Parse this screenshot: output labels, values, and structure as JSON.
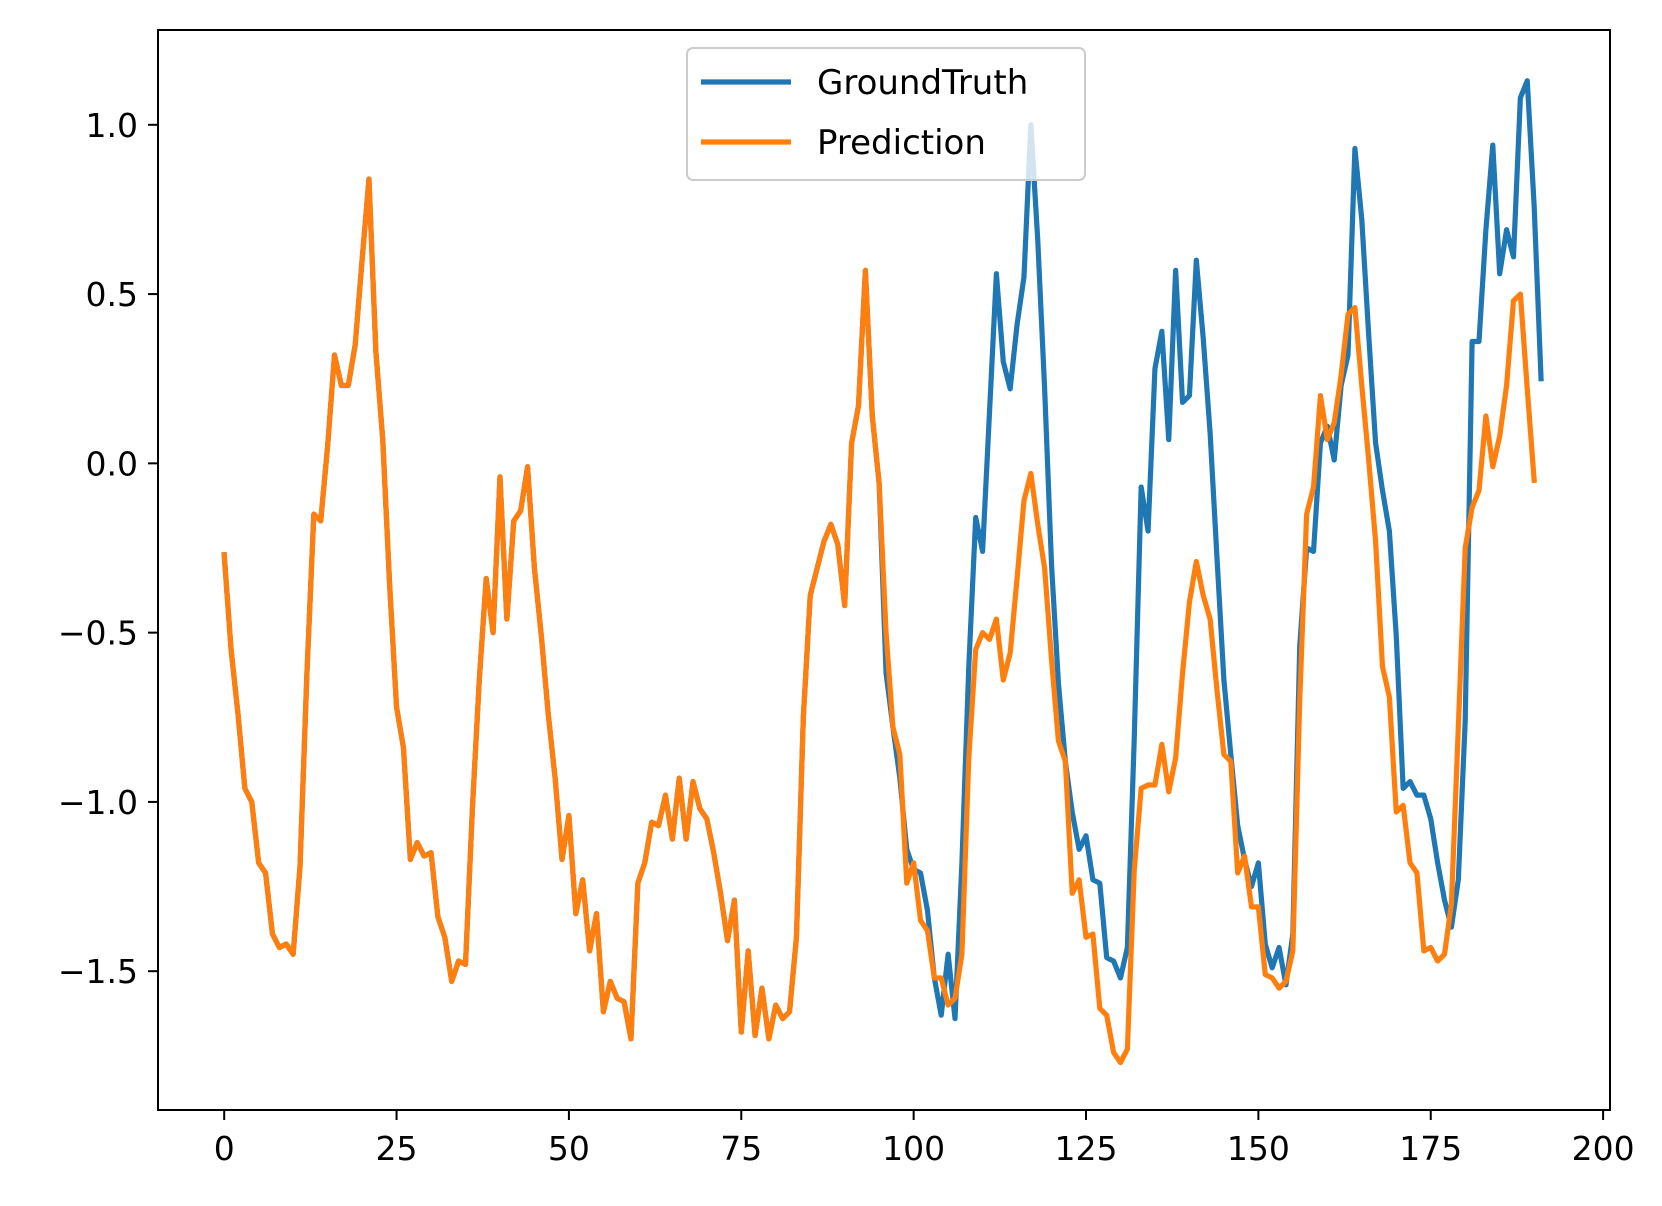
{
  "chart_data": {
    "type": "line",
    "title": "",
    "xlabel": "",
    "ylabel": "",
    "xlim": [
      -9.6,
      201
    ],
    "ylim": [
      -1.91,
      1.28
    ],
    "x_ticks": [
      0,
      25,
      50,
      75,
      100,
      125,
      150,
      175,
      200
    ],
    "y_ticks": [
      -1.5,
      -1.0,
      -0.5,
      0.0,
      0.5,
      1.0
    ],
    "x_tick_labels": [
      "0",
      "25",
      "50",
      "75",
      "100",
      "125",
      "150",
      "175",
      "200"
    ],
    "y_tick_labels": [
      "−1.5",
      "−1.0",
      "−0.5",
      "0.0",
      "0.5",
      "1.0"
    ],
    "grid": false,
    "legend": {
      "placement": "upper center"
    },
    "series": [
      {
        "name": "GroundTruth",
        "color": "#1f77b4",
        "values": [
          -0.27,
          -0.55,
          -0.74,
          -0.96,
          -1.0,
          -1.18,
          -1.21,
          -1.39,
          -1.43,
          -1.42,
          -1.45,
          -1.19,
          -0.62,
          -0.15,
          -0.17,
          0.05,
          0.32,
          0.23,
          0.23,
          0.35,
          0.6,
          0.84,
          0.33,
          0.07,
          -0.36,
          -0.72,
          -0.84,
          -1.17,
          -1.12,
          -1.16,
          -1.15,
          -1.34,
          -1.4,
          -1.53,
          -1.47,
          -1.48,
          -1.02,
          -0.64,
          -0.34,
          -0.5,
          -0.04,
          -0.46,
          -0.17,
          -0.14,
          -0.01,
          -0.31,
          -0.51,
          -0.74,
          -0.93,
          -1.17,
          -1.04,
          -1.33,
          -1.23,
          -1.44,
          -1.33,
          -1.62,
          -1.53,
          -1.58,
          -1.59,
          -1.7,
          -1.24,
          -1.18,
          -1.06,
          -1.07,
          -0.98,
          -1.11,
          -0.93,
          -1.11,
          -0.94,
          -1.02,
          -1.05,
          -1.15,
          -1.27,
          -1.41,
          -1.29,
          -1.68,
          -1.44,
          -1.69,
          -1.55,
          -1.7,
          -1.6,
          -1.64,
          -1.62,
          -1.4,
          -0.75,
          -0.39,
          -0.31,
          -0.23,
          -0.18,
          -0.24,
          -0.42,
          0.06,
          0.17,
          0.57,
          0.14,
          -0.06,
          -0.62,
          -0.78,
          -0.93,
          -1.14,
          -1.2,
          -1.21,
          -1.32,
          -1.52,
          -1.63,
          -1.45,
          -1.64,
          -1.18,
          -0.6,
          -0.16,
          -0.26,
          0.15,
          0.56,
          0.3,
          0.22,
          0.41,
          0.55,
          1.0,
          0.66,
          0.22,
          -0.3,
          -0.65,
          -0.88,
          -1.03,
          -1.14,
          -1.1,
          -1.23,
          -1.24,
          -1.46,
          -1.47,
          -1.52,
          -1.43,
          -0.81,
          -0.07,
          -0.2,
          0.28,
          0.39,
          0.07,
          0.57,
          0.18,
          0.2,
          0.6,
          0.37,
          0.09,
          -0.28,
          -0.64,
          -0.86,
          -1.07,
          -1.17,
          -1.25,
          -1.18,
          -1.42,
          -1.49,
          -1.43,
          -1.54,
          -1.39,
          -0.54,
          -0.25,
          -0.26,
          0.06,
          0.11,
          0.01,
          0.23,
          0.32,
          0.93,
          0.72,
          0.38,
          0.06,
          -0.08,
          -0.2,
          -0.51,
          -0.96,
          -0.94,
          -0.98,
          -0.98,
          -1.05,
          -1.18,
          -1.29,
          -1.37,
          -1.23,
          -0.76,
          0.36,
          0.36,
          0.69,
          0.94,
          0.56,
          0.69,
          0.61,
          1.08,
          1.13,
          0.76,
          0.25
        ]
      },
      {
        "name": "Prediction",
        "color": "#ff7f0e",
        "values": [
          -0.27,
          -0.55,
          -0.74,
          -0.96,
          -1.0,
          -1.18,
          -1.21,
          -1.39,
          -1.43,
          -1.42,
          -1.45,
          -1.19,
          -0.62,
          -0.15,
          -0.17,
          0.05,
          0.32,
          0.23,
          0.23,
          0.35,
          0.6,
          0.84,
          0.33,
          0.07,
          -0.36,
          -0.72,
          -0.84,
          -1.17,
          -1.12,
          -1.16,
          -1.15,
          -1.34,
          -1.4,
          -1.53,
          -1.47,
          -1.48,
          -1.02,
          -0.64,
          -0.34,
          -0.5,
          -0.04,
          -0.46,
          -0.17,
          -0.14,
          -0.01,
          -0.31,
          -0.51,
          -0.74,
          -0.93,
          -1.17,
          -1.04,
          -1.33,
          -1.23,
          -1.44,
          -1.33,
          -1.62,
          -1.53,
          -1.58,
          -1.59,
          -1.7,
          -1.24,
          -1.18,
          -1.06,
          -1.07,
          -0.98,
          -1.11,
          -0.93,
          -1.11,
          -0.94,
          -1.02,
          -1.05,
          -1.15,
          -1.27,
          -1.41,
          -1.29,
          -1.68,
          -1.44,
          -1.69,
          -1.55,
          -1.7,
          -1.6,
          -1.64,
          -1.62,
          -1.4,
          -0.75,
          -0.39,
          -0.31,
          -0.23,
          -0.18,
          -0.24,
          -0.42,
          0.06,
          0.17,
          0.57,
          0.14,
          -0.06,
          -0.5,
          -0.78,
          -0.86,
          -1.24,
          -1.18,
          -1.35,
          -1.38,
          -1.52,
          -1.52,
          -1.6,
          -1.58,
          -1.45,
          -0.87,
          -0.55,
          -0.5,
          -0.52,
          -0.46,
          -0.64,
          -0.56,
          -0.34,
          -0.11,
          -0.03,
          -0.18,
          -0.31,
          -0.58,
          -0.82,
          -0.88,
          -1.27,
          -1.23,
          -1.4,
          -1.39,
          -1.61,
          -1.63,
          -1.74,
          -1.77,
          -1.73,
          -1.2,
          -0.96,
          -0.95,
          -0.95,
          -0.83,
          -0.97,
          -0.87,
          -0.62,
          -0.41,
          -0.29,
          -0.39,
          -0.46,
          -0.67,
          -0.86,
          -0.88,
          -1.21,
          -1.16,
          -1.31,
          -1.31,
          -1.51,
          -1.52,
          -1.55,
          -1.53,
          -1.44,
          -0.7,
          -0.15,
          -0.07,
          0.2,
          0.07,
          0.12,
          0.26,
          0.44,
          0.46,
          0.23,
          0.01,
          -0.23,
          -0.6,
          -0.69,
          -1.03,
          -1.01,
          -1.18,
          -1.21,
          -1.44,
          -1.43,
          -1.47,
          -1.45,
          -1.3,
          -0.78,
          -0.25,
          -0.13,
          -0.08,
          0.14,
          -0.01,
          0.08,
          0.23,
          0.48,
          0.5,
          0.22,
          -0.05
        ]
      }
    ]
  }
}
